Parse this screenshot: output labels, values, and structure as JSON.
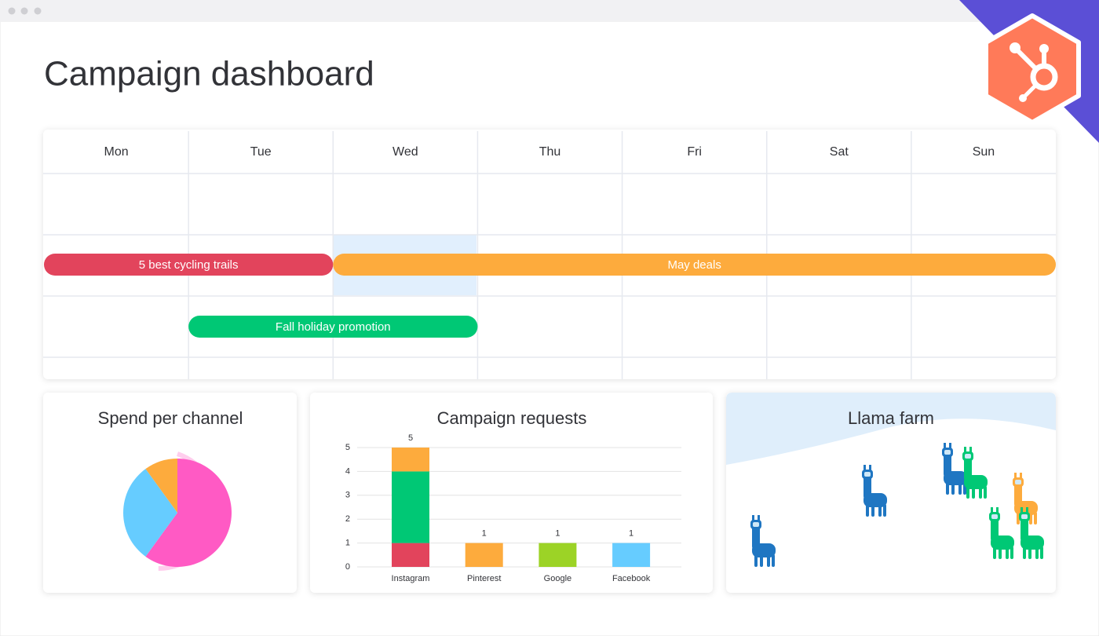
{
  "header": {
    "title": "Campaign dashboard"
  },
  "calendar": {
    "days": [
      "Mon",
      "Tue",
      "Wed",
      "Thu",
      "Fri",
      "Sat",
      "Sun"
    ],
    "events": [
      {
        "label": "5 best cycling trails",
        "color": "#e2445c"
      },
      {
        "label": "May deals",
        "color": "#fdab3d"
      },
      {
        "label": "Fall holiday promotion",
        "color": "#00c875"
      }
    ]
  },
  "chart_data": [
    {
      "type": "pie",
      "title": "Spend per channel",
      "values": [
        60,
        30,
        10
      ],
      "colors": [
        "#ff5ac4",
        "#66ccff",
        "#fdab3d"
      ]
    },
    {
      "type": "bar",
      "title": "Campaign requests",
      "categories": [
        "Instagram",
        "Pinterest",
        "Google",
        "Facebook"
      ],
      "stacks": [
        [
          {
            "value": 1,
            "color": "#e2445c"
          },
          {
            "value": 3,
            "color": "#00c875"
          },
          {
            "value": 1,
            "color": "#fdab3d"
          }
        ],
        [
          {
            "value": 1,
            "color": "#fdab3d"
          }
        ],
        [
          {
            "value": 1,
            "color": "#9cd326"
          }
        ],
        [
          {
            "value": 1,
            "color": "#66ccff"
          }
        ]
      ],
      "totals": [
        5,
        1,
        1,
        1
      ],
      "ylim": [
        0,
        5
      ],
      "yticks": [
        0,
        1,
        2,
        3,
        4,
        5
      ],
      "grid": true
    }
  ],
  "llama_farm": {
    "title": "Llama farm"
  }
}
